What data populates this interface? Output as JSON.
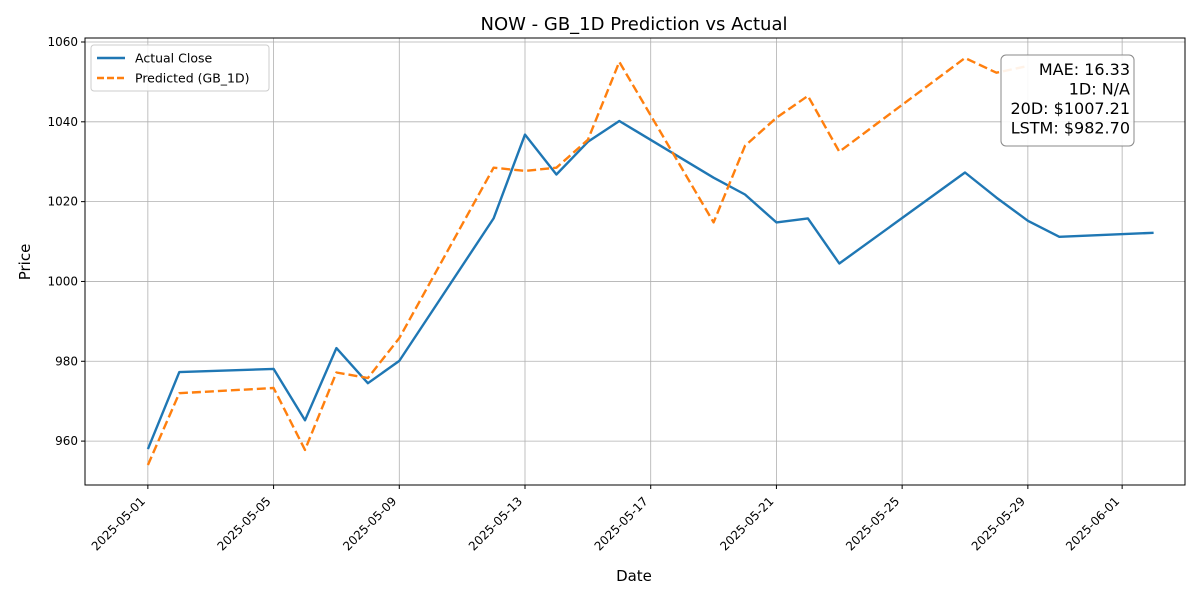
{
  "chart_data": {
    "type": "line",
    "title": "NOW - GB_1D Prediction vs Actual",
    "xlabel": "Date",
    "ylabel": "Price",
    "xlim": [
      "2025-04-29",
      "2025-06-03"
    ],
    "ylim": [
      949,
      1061
    ],
    "x_ticks": [
      "2025-05-01",
      "2025-05-05",
      "2025-05-09",
      "2025-05-13",
      "2025-05-17",
      "2025-05-21",
      "2025-05-25",
      "2025-05-29",
      "2025-06-01"
    ],
    "y_ticks": [
      960,
      980,
      1000,
      1020,
      1040,
      1060
    ],
    "grid": true,
    "legend_position": "upper-left",
    "series": [
      {
        "name": "Actual Close",
        "color": "#1f77b4",
        "style": "solid",
        "x": [
          "2025-05-01",
          "2025-05-02",
          "2025-05-05",
          "2025-05-06",
          "2025-05-07",
          "2025-05-08",
          "2025-05-09",
          "2025-05-12",
          "2025-05-13",
          "2025-05-14",
          "2025-05-15",
          "2025-05-16",
          "2025-05-19",
          "2025-05-20",
          "2025-05-21",
          "2025-05-22",
          "2025-05-23",
          "2025-05-27",
          "2025-05-28",
          "2025-05-29",
          "2025-05-30",
          "2025-06-02"
        ],
        "values": [
          958,
          977.3,
          978.1,
          965.2,
          983.3,
          974.5,
          980.1,
          1015.8,
          1036.8,
          1026.8,
          1035,
          1040.2,
          1026,
          1021.8,
          1014.8,
          1015.8,
          1004.5,
          1027.3,
          1021,
          1015.2,
          1011.2,
          1012.2
        ]
      },
      {
        "name": "Predicted (GB_1D)",
        "color": "#ff7f0e",
        "style": "dashed",
        "x": [
          "2025-05-01",
          "2025-05-02",
          "2025-05-05",
          "2025-05-06",
          "2025-05-07",
          "2025-05-08",
          "2025-05-09",
          "2025-05-12",
          "2025-05-13",
          "2025-05-14",
          "2025-05-15",
          "2025-05-16",
          "2025-05-19",
          "2025-05-20",
          "2025-05-21",
          "2025-05-22",
          "2025-05-23",
          "2025-05-27",
          "2025-05-28",
          "2025-05-29"
        ],
        "values": [
          954,
          972,
          973.3,
          957.8,
          977.2,
          975.8,
          985.8,
          1028.5,
          1027.7,
          1028.5,
          1035.5,
          1055,
          1014.8,
          1034,
          1041,
          1046.5,
          1032.5,
          1056,
          1052.3,
          1054
        ]
      }
    ],
    "annotation": {
      "lines": [
        "MAE: 16.33",
        "1D: N/A",
        "20D: $1007.21",
        "LSTM: $982.70"
      ]
    }
  }
}
